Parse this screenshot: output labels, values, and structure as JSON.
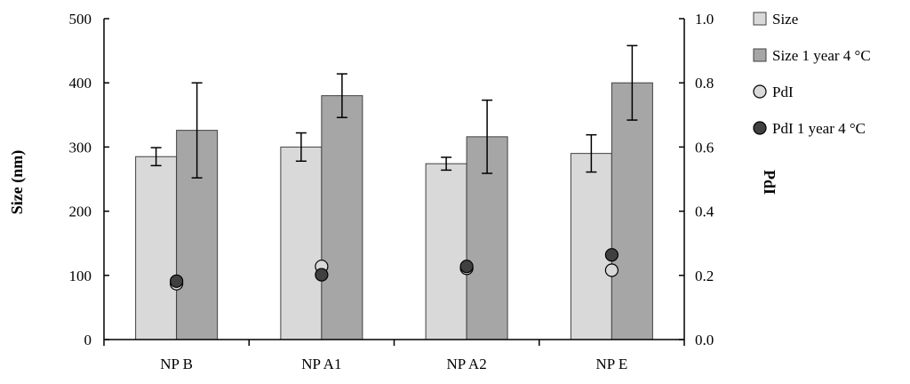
{
  "chart_data": {
    "type": "bar",
    "categories": [
      "NP B",
      "NP A1",
      "NP A2",
      "NP E"
    ],
    "series": [
      {
        "name": "Size",
        "axis": "left",
        "kind": "bar",
        "color": "#d9d9d9",
        "values": [
          285,
          300,
          274,
          290
        ],
        "errors": [
          14,
          22,
          10,
          29
        ]
      },
      {
        "name": "Size 1 year 4 °C",
        "axis": "left",
        "kind": "bar",
        "color": "#a6a6a6",
        "values": [
          326,
          380,
          316,
          400
        ],
        "errors": [
          74,
          34,
          57,
          58
        ]
      },
      {
        "name": "PdI",
        "axis": "right",
        "kind": "point",
        "color": "#d9d9d9",
        "values": [
          0.174,
          0.228,
          0.222,
          0.216
        ]
      },
      {
        "name": "PdI 1 year 4 °C",
        "axis": "right",
        "kind": "point",
        "color": "#404040",
        "values": [
          0.182,
          0.202,
          0.228,
          0.264
        ]
      }
    ],
    "ylabel": "Size (nm)",
    "y2label": "PdI",
    "ylim": [
      0,
      500
    ],
    "y2lim": [
      0,
      1.0
    ],
    "yticks": [
      "0",
      "100",
      "200",
      "300",
      "400",
      "500"
    ],
    "y2ticks": [
      "0.0",
      "0.2",
      "0.4",
      "0.6",
      "0.8",
      "1.0"
    ],
    "grid": false,
    "legend_position": "top-right"
  }
}
